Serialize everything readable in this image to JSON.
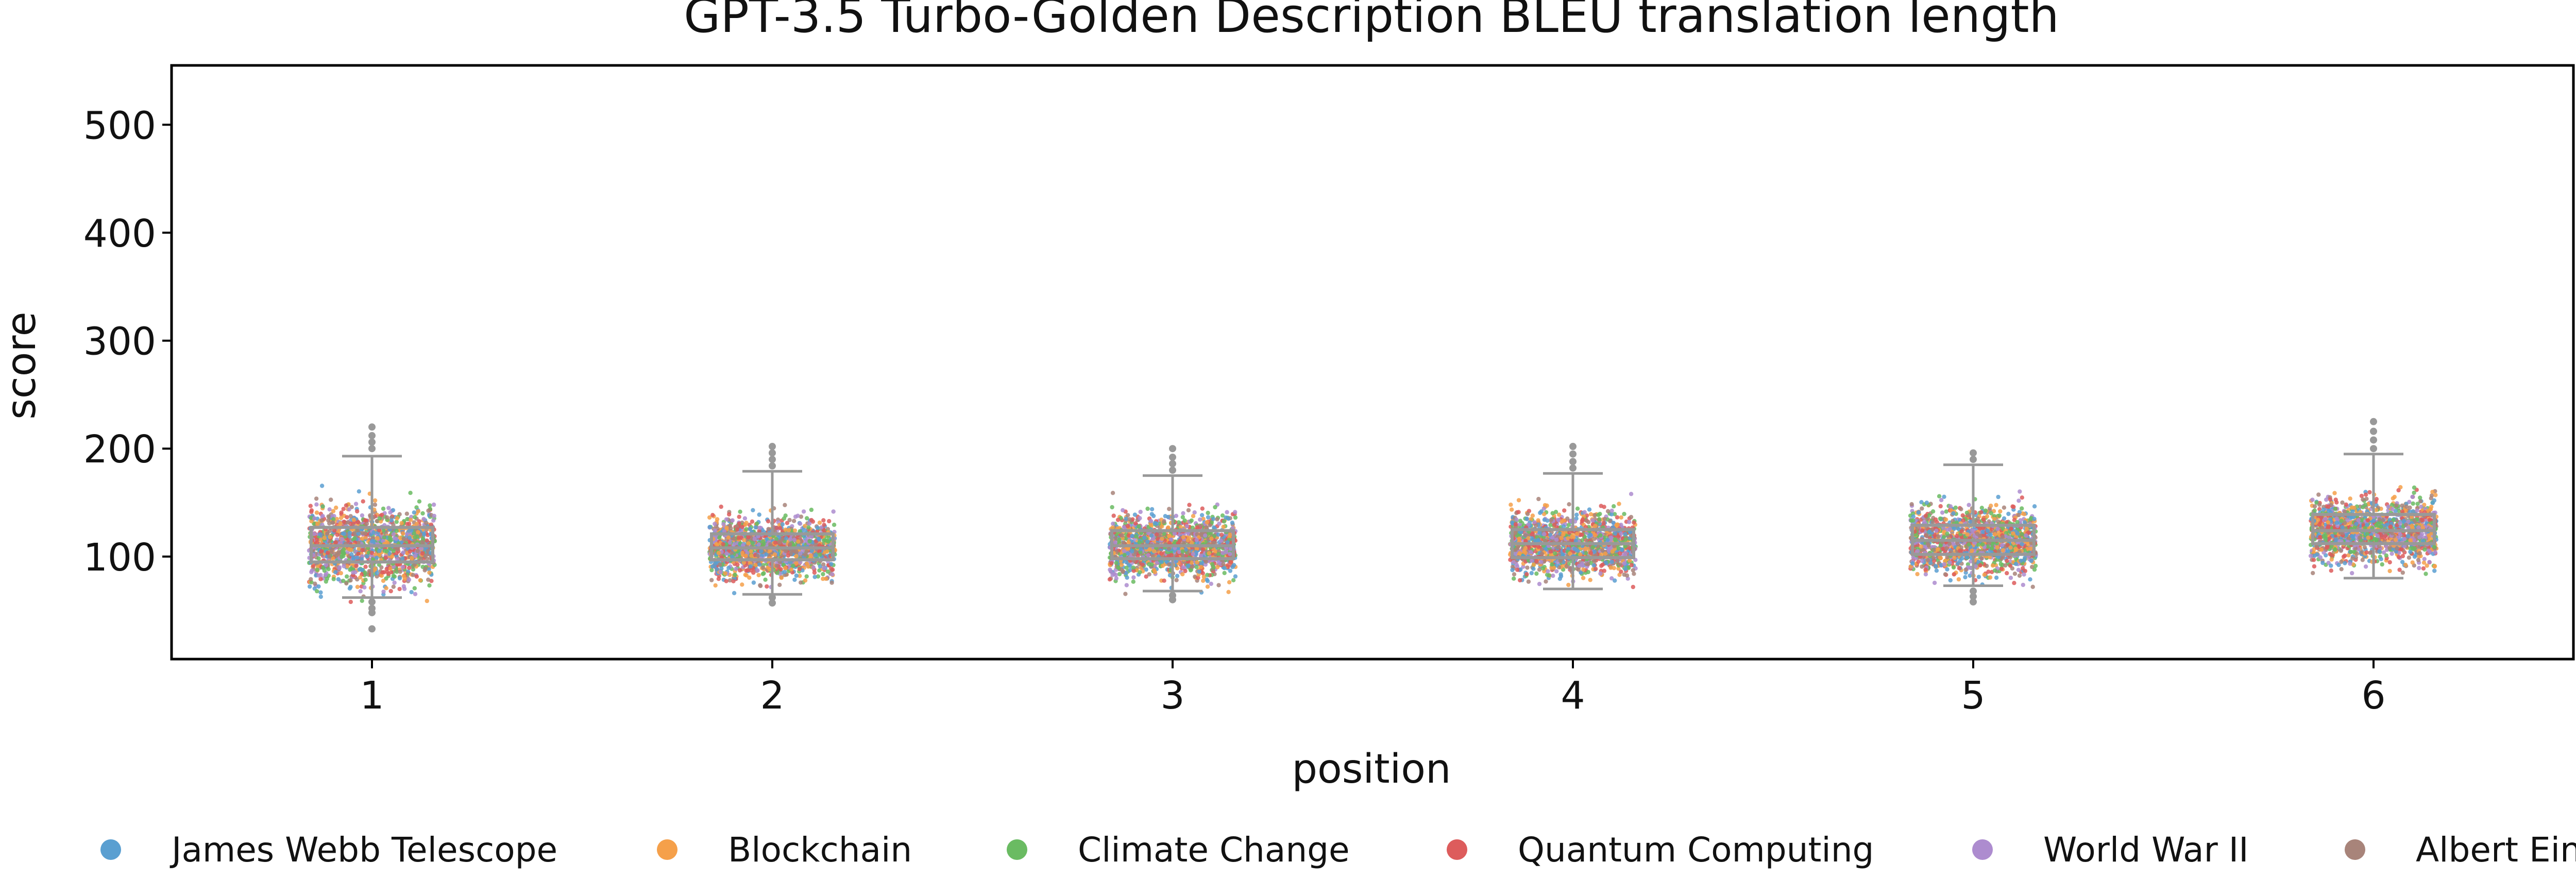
{
  "chart_data": {
    "type": "box-strip",
    "title": "GPT-3.5 Turbo-Golden Description BLEU translation length",
    "xlabel": "position",
    "ylabel": "score",
    "categories": [
      "1",
      "2",
      "3",
      "4",
      "5",
      "6"
    ],
    "yticks": [
      100,
      200,
      300,
      400,
      500
    ],
    "ylim": [
      5,
      555
    ],
    "boxes": [
      {
        "position": "1",
        "whisker_low": 62,
        "q1": 95,
        "median": 110,
        "q3": 127,
        "whisker_high": 193,
        "outliers": [
          200,
          206,
          212,
          220,
          58,
          52,
          48,
          33
        ]
      },
      {
        "position": "2",
        "whisker_low": 65,
        "q1": 97,
        "median": 108,
        "q3": 121,
        "whisker_high": 179,
        "outliers": [
          184,
          190,
          196,
          202,
          62,
          57
        ]
      },
      {
        "position": "3",
        "whisker_low": 68,
        "q1": 98,
        "median": 110,
        "q3": 124,
        "whisker_high": 175,
        "outliers": [
          180,
          186,
          192,
          200,
          64,
          60
        ]
      },
      {
        "position": "4",
        "whisker_low": 70,
        "q1": 99,
        "median": 112,
        "q3": 125,
        "whisker_high": 177,
        "outliers": [
          182,
          188,
          195,
          202
        ]
      },
      {
        "position": "5",
        "whisker_low": 73,
        "q1": 102,
        "median": 115,
        "q3": 129,
        "whisker_high": 185,
        "outliers": [
          190,
          196,
          68,
          63,
          58
        ]
      },
      {
        "position": "6",
        "whisker_low": 80,
        "q1": 112,
        "median": 124,
        "q3": 139,
        "whisker_high": 195,
        "outliers": [
          200,
          208,
          216,
          225
        ]
      }
    ],
    "series": [
      {
        "name": "James Webb Telescope",
        "color": "#5a9fd1"
      },
      {
        "name": "Blockchain",
        "color": "#f5a04a"
      },
      {
        "name": "Climate Change",
        "color": "#6abb62"
      },
      {
        "name": "Quantum Computing",
        "color": "#dd5c5c"
      },
      {
        "name": "World War II",
        "color": "#ad8ccf"
      },
      {
        "name": "Albert Einstein",
        "color": "#a8847a"
      }
    ],
    "legend_position": "bottom",
    "grid": false,
    "box_color": "#999999"
  }
}
